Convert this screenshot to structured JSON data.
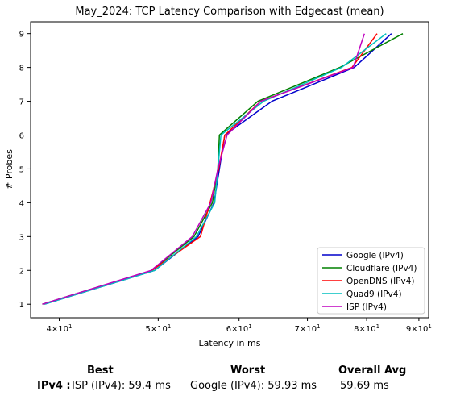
{
  "chart_data": {
    "type": "line",
    "title": "May_2024: TCP Latency Comparison with Edgecast (mean)",
    "xlabel": "Latency in ms",
    "ylabel": "# Probes",
    "x_scale": "log",
    "xlim": [
      37.5,
      92
    ],
    "ylim": [
      0.6,
      9.35
    ],
    "x_ticks": [
      {
        "value": 40,
        "base": "4",
        "exp": "1"
      },
      {
        "value": 50,
        "base": "5",
        "exp": "1"
      },
      {
        "value": 60,
        "base": "6",
        "exp": "1"
      },
      {
        "value": 70,
        "base": "7",
        "exp": "1"
      },
      {
        "value": 80,
        "base": "8",
        "exp": "1"
      },
      {
        "value": 90,
        "base": "9",
        "exp": "1"
      }
    ],
    "y_ticks": [
      "1",
      "2",
      "3",
      "4",
      "5",
      "6",
      "7",
      "8",
      "9"
    ],
    "grid": false,
    "legend_position": "lower-right",
    "series": [
      {
        "name": "Google (IPv4)",
        "color": "#0000cc",
        "x": [
          38.7,
          49.6,
          54.7,
          56.7,
          57.4,
          58.1,
          64.6,
          77.8,
          84.6
        ],
        "y": [
          1,
          2,
          3,
          4,
          5,
          6,
          7,
          8,
          9
        ]
      },
      {
        "name": "Cloudflare (IPv4)",
        "color": "#008000",
        "x": [
          38.5,
          49.3,
          54.2,
          56.5,
          57.2,
          57.4,
          62.6,
          75.3,
          86.8
        ],
        "y": [
          1,
          2,
          3,
          4,
          5,
          6,
          7,
          8,
          9
        ]
      },
      {
        "name": "OpenDNS (IPv4)",
        "color": "#ff0000",
        "x": [
          38.6,
          49.3,
          55.0,
          56.2,
          57.3,
          58.1,
          63.0,
          77.4,
          81.9
        ],
        "y": [
          1,
          2,
          3,
          4,
          5,
          6,
          7,
          8,
          9
        ]
      },
      {
        "name": "Quad9 (IPv4)",
        "color": "#00bfbf",
        "x": [
          38.7,
          49.6,
          54.5,
          56.8,
          57.2,
          57.6,
          63.4,
          75.6,
          83.6
        ],
        "y": [
          1,
          2,
          3,
          4,
          5,
          6,
          7,
          8,
          9
        ]
      },
      {
        "name": "ISP (IPv4)",
        "color": "#bf00bf",
        "x": [
          38.5,
          49.2,
          54.0,
          56.3,
          57.2,
          58.4,
          63.0,
          77.6,
          79.6
        ],
        "y": [
          1,
          2,
          3,
          4,
          5,
          6,
          7,
          8,
          9
        ]
      }
    ]
  },
  "summary": {
    "best_header": "Best",
    "worst_header": "Worst",
    "avg_header": "Overall Avg",
    "row_label": "IPv4 :",
    "best_value": "ISP (IPv4): 59.4 ms",
    "worst_value": "Google (IPv4): 59.93 ms",
    "avg_value": "59.69 ms"
  }
}
